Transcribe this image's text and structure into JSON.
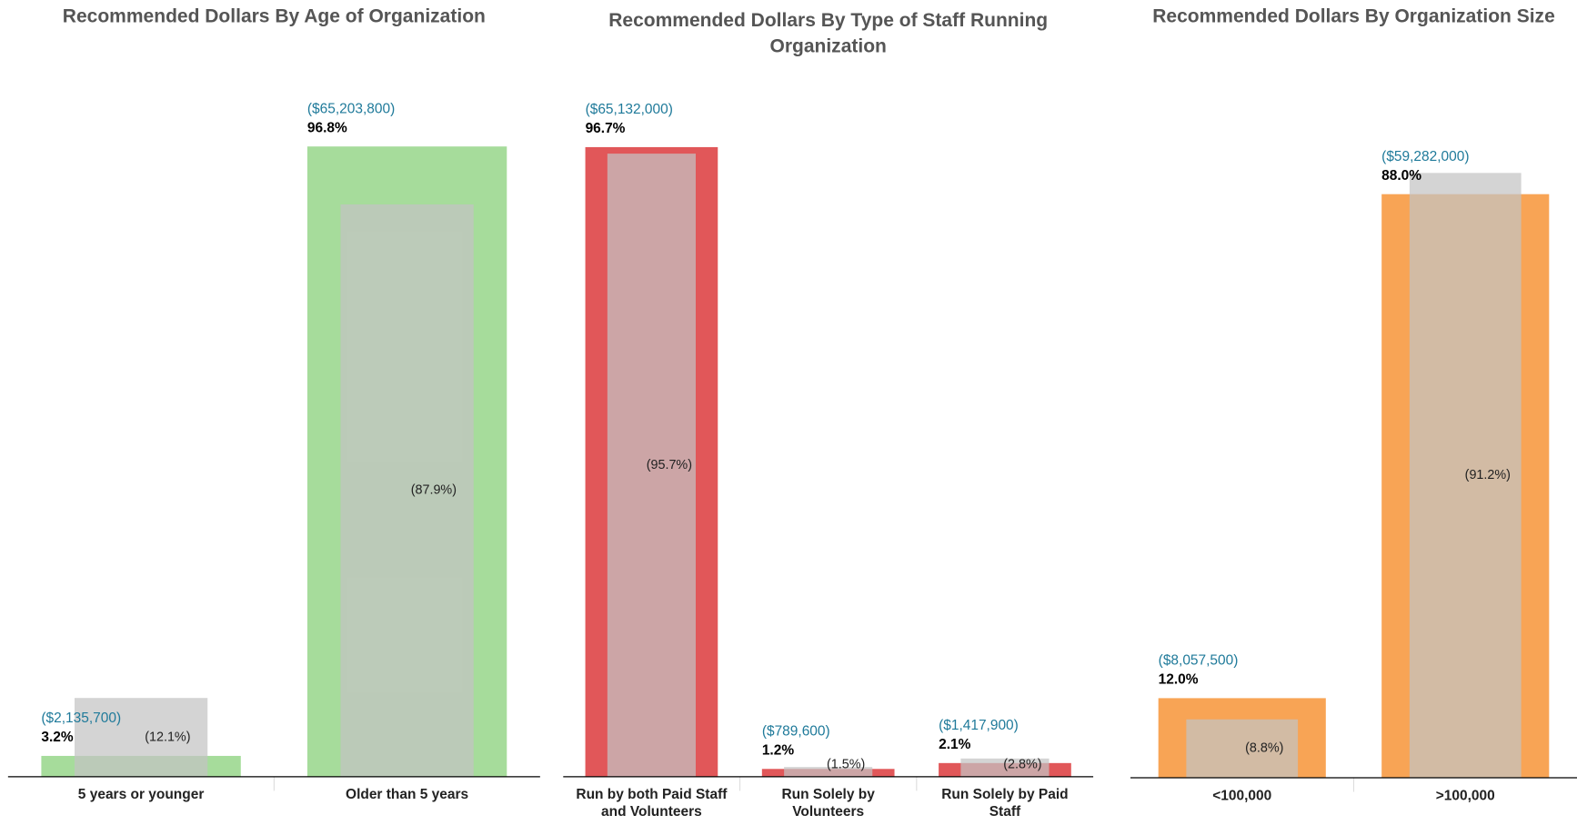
{
  "chart_data": [
    {
      "type": "bar",
      "title": "Recommended Dollars By Age of Organization",
      "categories": [
        "5 years or younger",
        "Older than 5 years"
      ],
      "values": [
        3.2,
        96.8
      ],
      "value_labels": [
        "3.2%",
        "96.8%"
      ],
      "color": "#a6dc9b",
      "dollar_labels": [
        "($2,135,700)",
        "($65,203,800)"
      ],
      "overlay": {
        "values": [
          12.1,
          87.9
        ],
        "value_labels": [
          "(12.1%)",
          "(87.9%)"
        ],
        "color": "#c4c4c4"
      },
      "ylim": [
        0,
        100
      ]
    },
    {
      "type": "bar",
      "title": "Recommended Dollars By Type of Staff Running Organization",
      "categories": [
        "Run by both Paid Staff and Volunteers",
        "Run Solely by Volunteers",
        "Run Solely by Paid Staff"
      ],
      "values": [
        96.7,
        1.2,
        2.1
      ],
      "value_labels": [
        "96.7%",
        "1.2%",
        "2.1%"
      ],
      "color": "#e15759",
      "dollar_labels": [
        "($65,132,000)",
        "($789,600)",
        "($1,417,900)"
      ],
      "overlay": {
        "values": [
          95.7,
          1.5,
          2.8
        ],
        "value_labels": [
          "(95.7%)",
          "(1.5%)",
          "(2.8%)"
        ],
        "color": "#c4c4c4"
      },
      "ylim": [
        0,
        100
      ]
    },
    {
      "type": "bar",
      "title": "Recommended Dollars By Organization Size",
      "categories": [
        "<100,000",
        ">100,000"
      ],
      "values": [
        12.0,
        88.0
      ],
      "value_labels": [
        "12.0%",
        "88.0%"
      ],
      "color": "#f8a455",
      "dollar_labels": [
        "($8,057,500)",
        "($59,282,000)"
      ],
      "overlay": {
        "values": [
          8.8,
          91.2
        ],
        "value_labels": [
          "(8.8%)",
          "(91.2%)"
        ],
        "color": "#c4c4c4"
      },
      "ylim": [
        0,
        100
      ]
    }
  ]
}
